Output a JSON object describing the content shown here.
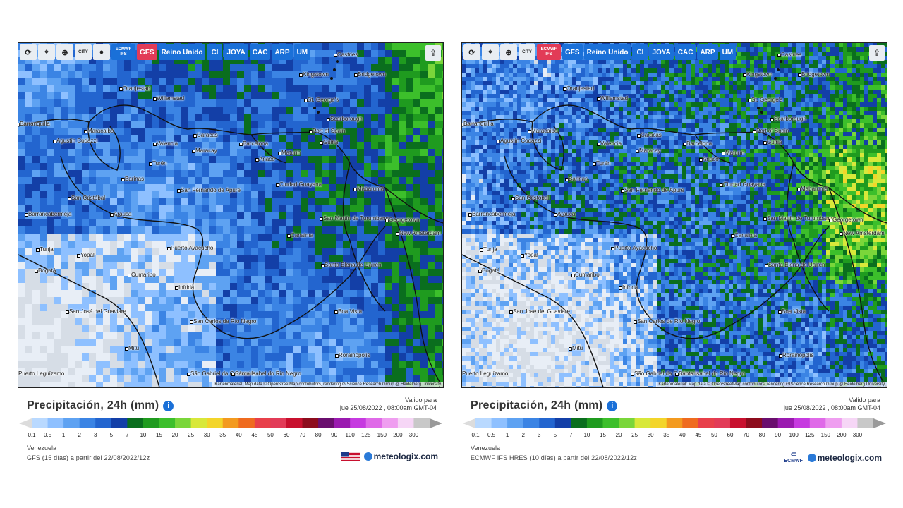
{
  "common": {
    "title": "Precipitación, 24h (mm)",
    "valid_label": "Valido para",
    "valid_date": "jue 25/08/2022 , 08:00am GMT-04",
    "region": "Venezuela",
    "attribution": "Kartenmaterial: Map data © OpenStreetMap contributors, rendering GIScience Research Group @ Heidelberg University",
    "brand": "meteologix.com",
    "toolbar_models": [
      "Reino Unido",
      "CI",
      "JOYA",
      "CAC",
      "ARP",
      "UM"
    ],
    "scale_labels": [
      "0.1",
      "0.5",
      "1",
      "2",
      "3",
      "5",
      "7",
      "10",
      "15",
      "20",
      "25",
      "30",
      "35",
      "40",
      "45",
      "50",
      "60",
      "70",
      "80",
      "90",
      "100",
      "125",
      "150",
      "200",
      "300"
    ],
    "scale_colors": [
      "#b9d9ff",
      "#8ec0ff",
      "#5ea2f2",
      "#3b84e4",
      "#2365cf",
      "#133fa7",
      "#0a6e1e",
      "#1f9b1f",
      "#3cbf2b",
      "#7ad63a",
      "#d8e83a",
      "#f3d52a",
      "#f39a1f",
      "#ef6b1f",
      "#e8404a",
      "#e23b57",
      "#c8102e",
      "#8d0c1d",
      "#6a0e6e",
      "#9a1ab0",
      "#c63ae0",
      "#df6ae8",
      "#ef9ef0",
      "#f6d6f6",
      "#c8c8c8"
    ]
  },
  "panels": [
    {
      "id": "gfs",
      "toolbar_icons": [
        "refresh-icon",
        "location-pin-icon",
        "zoom-icon",
        "city-labels-icon",
        "dot-icon"
      ],
      "model_buttons": [
        {
          "label": "ECMWF IFS",
          "active": false
        },
        {
          "label": "GFS",
          "active": true
        }
      ],
      "city_toggle_label": "CITY",
      "model_line": "GFS (15 días) a partir del 22/08/2022/12z",
      "logo_type": "us-flag"
    },
    {
      "id": "ecmwf",
      "toolbar_icons": [
        "refresh-icon",
        "location-pin-icon",
        "zoom-icon",
        "city-labels-icon"
      ],
      "model_buttons": [
        {
          "label": "ECMWF IFS",
          "active": true
        },
        {
          "label": "GFS",
          "active": false
        }
      ],
      "city_toggle_label": "CITY",
      "model_line": "ECMWF IFS HRES (10 días) a partir del 22/08/2022/12z",
      "logo_type": "ecmwf",
      "ecmwf_logo_text": "ECMWF"
    }
  ],
  "cities": [
    {
      "name": "Castries"
    },
    {
      "name": "Kingstown"
    },
    {
      "name": "Bridgetown"
    },
    {
      "name": "Oranjestad"
    },
    {
      "name": "Willemstad"
    },
    {
      "name": "St. George's"
    },
    {
      "name": "Scarborough"
    },
    {
      "name": "Port of Spain"
    },
    {
      "name": "Barranquilla"
    },
    {
      "name": "Maracaibo"
    },
    {
      "name": "Caracas"
    },
    {
      "name": "Valencia"
    },
    {
      "name": "Maracay"
    },
    {
      "name": "Barcelona"
    },
    {
      "name": "Güiria"
    },
    {
      "name": "Maturín"
    },
    {
      "name": "Agustín Codazzi"
    },
    {
      "name": "Turén"
    },
    {
      "name": "Anaco"
    },
    {
      "name": "Barinas"
    },
    {
      "name": "Ciudad Guayana"
    },
    {
      "name": "San Fernando de Apure"
    },
    {
      "name": "Mabaruma"
    },
    {
      "name": "San Cristóbal"
    },
    {
      "name": "Barrancabermeja"
    },
    {
      "name": "Arauca"
    },
    {
      "name": "San Martín de Turumbang"
    },
    {
      "name": "Georgetown"
    },
    {
      "name": "New Amsterdam"
    },
    {
      "name": "Canaima"
    },
    {
      "name": "Tunja"
    },
    {
      "name": "Yopal"
    },
    {
      "name": "Puerto Ayacucho"
    },
    {
      "name": "Bogotá"
    },
    {
      "name": "Santa Elena de Uairén"
    },
    {
      "name": "Cumaribo"
    },
    {
      "name": "Inírida"
    },
    {
      "name": "San José del Guaviare"
    },
    {
      "name": "Boa Vista"
    },
    {
      "name": "San Carlos de Río Negro"
    },
    {
      "name": "Mitú"
    },
    {
      "name": "Rorainópolis"
    },
    {
      "name": "São Gabriel da Cachoeira"
    },
    {
      "name": "Santa Isabel do Rio Negro"
    },
    {
      "name": "Puerto Leguízamo"
    }
  ]
}
